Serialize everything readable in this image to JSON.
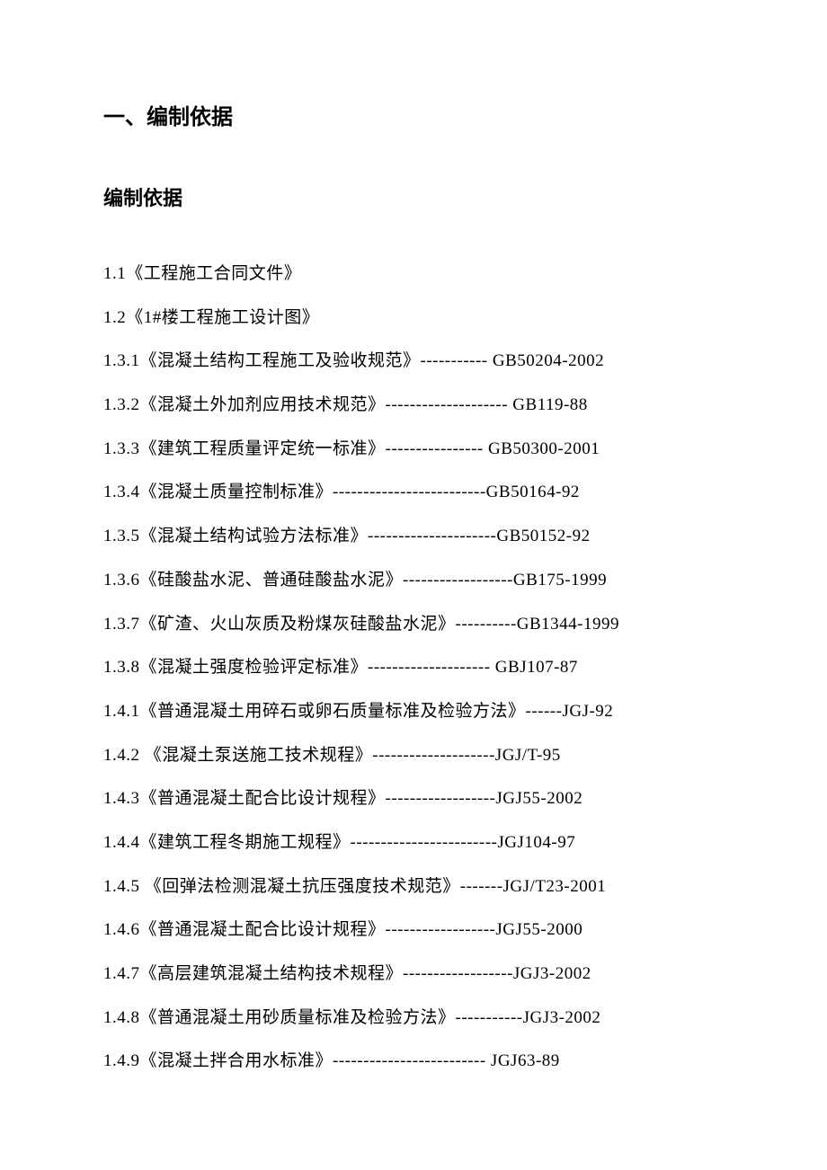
{
  "page": {
    "background_color": "#ffffff",
    "text_color": "#000000",
    "font_family": "SimSun",
    "heading1_fontsize": 24,
    "heading2_fontsize": 22,
    "body_fontsize": 19,
    "line_spacing": 24
  },
  "heading1": "一、编制依据",
  "heading2": "编制依据",
  "items": [
    "1.1《工程施工合同文件》",
    "1.2《1#楼工程施工设计图》",
    "1.3.1《混凝土结构工程施工及验收规范》----------- GB50204-2002",
    "1.3.2《混凝土外加剂应用技术规范》-------------------- GB119-88",
    "1.3.3《建筑工程质量评定统一标准》---------------- GB50300-2001",
    "1.3.4《混凝土质量控制标准》-------------------------GB50164-92",
    "1.3.5《混凝土结构试验方法标准》---------------------GB50152-92",
    "1.3.6《硅酸盐水泥、普通硅酸盐水泥》------------------GB175-1999",
    "1.3.7《矿渣、火山灰质及粉煤灰硅酸盐水泥》----------GB1344-1999",
    "1.3.8《混凝土强度检验评定标准》-------------------- GBJ107-87",
    "1.4.1《普通混凝土用碎石或卵石质量标准及检验方法》------JGJ-92",
    "1.4.2 《混凝土泵送施工技术规程》--------------------JGJ/T-95",
    "1.4.3《普通混凝土配合比设计规程》------------------JGJ55-2002",
    "1.4.4《建筑工程冬期施工规程》------------------------JGJ104-97",
    "1.4.5 《回弹法检测混凝土抗压强度技术规范》-------JGJ/T23-2001",
    "1.4.6《普通混凝土配合比设计规程》------------------JGJ55-2000",
    "1.4.7《高层建筑混凝土结构技术规程》------------------JGJ3-2002",
    "1.4.8《普通混凝土用砂质量标准及检验方法》-----------JGJ3-2002",
    "1.4.9《混凝土拌合用水标准》------------------------- JGJ63-89"
  ]
}
